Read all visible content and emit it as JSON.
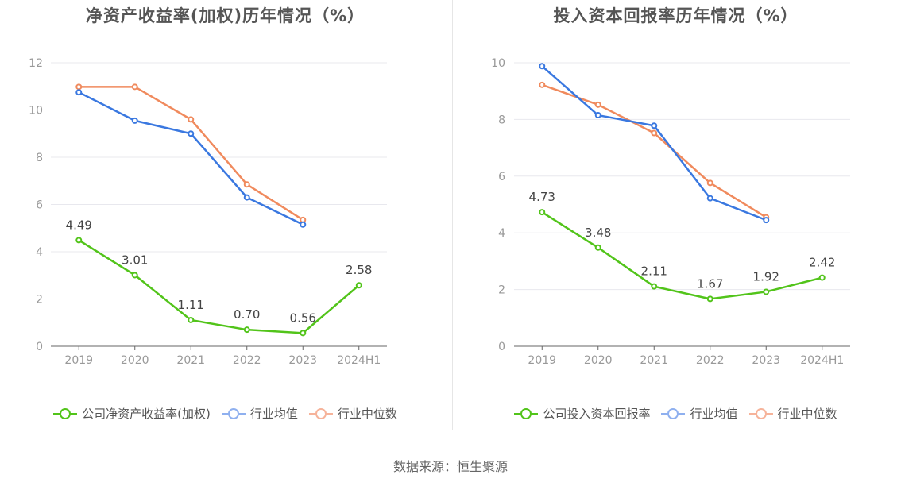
{
  "chart_data": [
    {
      "type": "line",
      "title": "净资产收益率(加权)历年情况（%）",
      "categories": [
        "2019",
        "2020",
        "2021",
        "2022",
        "2023",
        "2024H1"
      ],
      "ylim": [
        0,
        12
      ],
      "yticks": [
        "0",
        "2",
        "4",
        "6",
        "8",
        "10",
        "12"
      ],
      "grid": true,
      "legend_position": "bottom",
      "series": [
        {
          "name": "公司净资产收益率(加权)",
          "color": "#52c41a",
          "values": [
            4.49,
            3.01,
            1.11,
            0.7,
            0.56,
            2.58
          ],
          "labels": [
            "4.49",
            "3.01",
            "1.11",
            "0.70",
            "0.56",
            "2.58"
          ],
          "show_labels": true
        },
        {
          "name": "行业均值",
          "color": "#3a78e0",
          "values": [
            10.75,
            9.55,
            9.0,
            6.3,
            5.15,
            null
          ],
          "show_labels": false
        },
        {
          "name": "行业中位数",
          "color": "#f08a5d",
          "values": [
            10.98,
            10.98,
            9.6,
            6.85,
            5.35,
            null
          ],
          "show_labels": false
        }
      ]
    },
    {
      "type": "line",
      "title": "投入资本回报率历年情况（%）",
      "categories": [
        "2019",
        "2020",
        "2021",
        "2022",
        "2023",
        "2024H1"
      ],
      "ylim": [
        0,
        10
      ],
      "yticks": [
        "0",
        "2",
        "4",
        "6",
        "8",
        "10"
      ],
      "grid": true,
      "legend_position": "bottom",
      "series": [
        {
          "name": "公司投入资本回报率",
          "color": "#52c41a",
          "values": [
            4.73,
            3.48,
            2.11,
            1.67,
            1.92,
            2.42
          ],
          "labels": [
            "4.73",
            "3.48",
            "2.11",
            "1.67",
            "1.92",
            "2.42"
          ],
          "show_labels": true
        },
        {
          "name": "行业均值",
          "color": "#3a78e0",
          "values": [
            9.88,
            8.15,
            7.78,
            5.22,
            4.45,
            null
          ],
          "show_labels": false
        },
        {
          "name": "行业中位数",
          "color": "#f08a5d",
          "values": [
            9.22,
            8.52,
            7.52,
            5.76,
            4.55,
            null
          ],
          "show_labels": false
        }
      ]
    }
  ],
  "legend_colors": {
    "company": "#52c41a",
    "avg": "#8fb0ef",
    "median": "#f6b39a"
  },
  "source": "数据来源：恒生聚源"
}
